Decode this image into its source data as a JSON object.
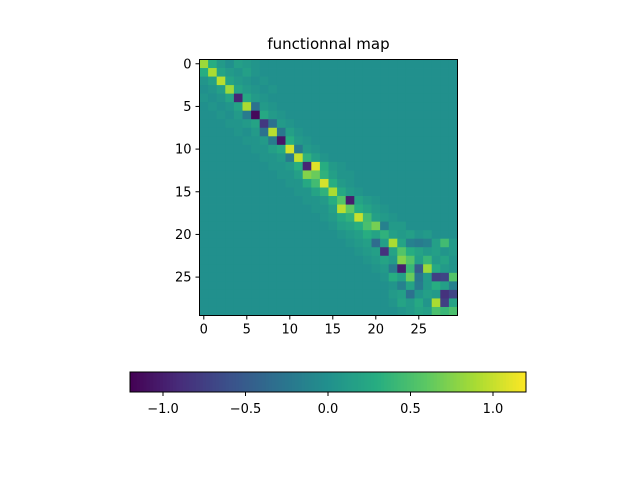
{
  "chart_data": [
    {
      "type": "heatmap",
      "title": "functionnal map",
      "rows": 30,
      "cols": 30,
      "x_ticks": [
        0,
        5,
        10,
        15,
        20,
        25
      ],
      "y_ticks": [
        0,
        5,
        10,
        15,
        20,
        25
      ],
      "x_tick_labels": [
        "0",
        "5",
        "10",
        "15",
        "20",
        "25"
      ],
      "y_tick_labels": [
        "0",
        "5",
        "10",
        "15",
        "20",
        "25"
      ],
      "colormap": "viridis",
      "vmin": -1.2,
      "vmax": 1.2,
      "background_value": 0.0,
      "values": [
        [
          0.85,
          0.3,
          0.1,
          0.0,
          0.15,
          0.1,
          0.05,
          0.0,
          0.0,
          0.0,
          0.0,
          0.0,
          0.0,
          0.0,
          0.0,
          0.0,
          0.0,
          0.0,
          0.0,
          0.0,
          0.0,
          0.0,
          0.0,
          0.0,
          0.0,
          0.0,
          0.0,
          0.0,
          0.0,
          0.0
        ],
        [
          0.3,
          0.9,
          0.2,
          0.1,
          0.05,
          0.15,
          0.05,
          0.0,
          0.0,
          0.0,
          0.0,
          0.0,
          0.0,
          0.0,
          0.0,
          0.0,
          0.0,
          0.0,
          0.0,
          0.0,
          0.0,
          0.0,
          0.0,
          0.0,
          0.0,
          0.0,
          0.0,
          0.0,
          0.0,
          0.0
        ],
        [
          0.05,
          0.15,
          0.95,
          0.2,
          0.1,
          0.05,
          0.0,
          0.05,
          0.0,
          0.0,
          0.0,
          0.0,
          0.0,
          0.0,
          0.0,
          0.0,
          0.0,
          0.0,
          0.0,
          0.0,
          0.0,
          0.0,
          0.0,
          0.0,
          0.0,
          0.0,
          0.0,
          0.0,
          0.0,
          0.0
        ],
        [
          0.0,
          0.05,
          0.15,
          0.85,
          0.2,
          0.1,
          0.05,
          0.0,
          0.05,
          0.0,
          0.0,
          0.0,
          0.0,
          0.0,
          0.0,
          0.0,
          0.0,
          0.0,
          0.0,
          0.0,
          0.0,
          0.0,
          0.0,
          0.0,
          0.0,
          0.0,
          0.0,
          0.0,
          0.0,
          0.0
        ],
        [
          0.05,
          0.0,
          0.05,
          0.2,
          -0.95,
          0.25,
          0.1,
          0.05,
          0.0,
          0.0,
          0.0,
          0.0,
          0.0,
          0.0,
          0.0,
          0.0,
          0.0,
          0.0,
          0.0,
          0.0,
          0.0,
          0.0,
          0.0,
          0.0,
          0.0,
          0.0,
          0.0,
          0.0,
          0.0,
          0.0
        ],
        [
          0.0,
          0.05,
          0.0,
          0.05,
          0.2,
          0.9,
          -0.3,
          0.1,
          0.05,
          0.0,
          0.0,
          0.0,
          0.0,
          0.0,
          0.0,
          0.0,
          0.0,
          0.0,
          0.0,
          0.0,
          0.0,
          0.0,
          0.0,
          0.0,
          0.0,
          0.0,
          0.0,
          0.0,
          0.0,
          0.0
        ],
        [
          0.0,
          0.0,
          0.05,
          0.0,
          0.1,
          -0.2,
          -1.15,
          0.25,
          0.1,
          0.05,
          0.0,
          0.0,
          0.0,
          0.0,
          0.0,
          0.0,
          0.0,
          0.0,
          0.0,
          0.0,
          0.0,
          0.0,
          0.0,
          0.0,
          0.0,
          0.0,
          0.0,
          0.0,
          0.0,
          0.0
        ],
        [
          0.0,
          0.0,
          0.0,
          0.05,
          0.05,
          0.1,
          0.2,
          -0.8,
          -0.3,
          0.1,
          0.05,
          0.0,
          0.0,
          0.0,
          0.0,
          0.0,
          0.0,
          0.0,
          0.0,
          0.0,
          0.0,
          0.0,
          0.0,
          0.0,
          0.0,
          0.0,
          0.0,
          0.0,
          0.0,
          0.0
        ],
        [
          0.0,
          0.0,
          0.0,
          0.0,
          0.05,
          0.0,
          0.1,
          -0.3,
          0.95,
          -0.25,
          0.15,
          0.05,
          0.0,
          0.0,
          0.0,
          0.0,
          0.0,
          0.0,
          0.0,
          0.0,
          0.0,
          0.0,
          0.0,
          0.0,
          0.0,
          0.0,
          0.0,
          0.0,
          0.0,
          0.0
        ],
        [
          0.0,
          0.0,
          0.0,
          0.0,
          0.0,
          0.05,
          0.05,
          0.1,
          -0.2,
          -1.05,
          0.3,
          0.1,
          0.05,
          0.0,
          0.0,
          0.0,
          0.0,
          0.0,
          0.0,
          0.0,
          0.0,
          0.0,
          0.0,
          0.0,
          0.0,
          0.0,
          0.0,
          0.0,
          0.0,
          0.0
        ],
        [
          0.0,
          0.0,
          0.0,
          0.0,
          0.0,
          0.0,
          0.05,
          0.05,
          0.15,
          0.25,
          1.05,
          -0.2,
          0.1,
          0.05,
          0.0,
          0.0,
          0.0,
          0.0,
          0.0,
          0.0,
          0.0,
          0.0,
          0.0,
          0.0,
          0.0,
          0.0,
          0.0,
          0.0,
          0.0,
          0.0
        ],
        [
          0.0,
          0.0,
          0.0,
          0.0,
          0.0,
          0.0,
          0.0,
          0.05,
          0.05,
          0.1,
          -0.2,
          1.0,
          0.35,
          0.15,
          0.05,
          0.0,
          0.0,
          0.0,
          0.0,
          0.0,
          0.0,
          0.0,
          0.0,
          0.0,
          0.0,
          0.0,
          0.0,
          0.0,
          0.0,
          0.0
        ],
        [
          0.0,
          0.0,
          0.0,
          0.0,
          0.0,
          0.0,
          0.0,
          0.0,
          0.05,
          0.05,
          0.1,
          0.3,
          -0.95,
          1.1,
          0.3,
          0.1,
          0.05,
          0.0,
          0.0,
          0.0,
          0.0,
          0.0,
          0.0,
          0.0,
          0.0,
          0.0,
          0.0,
          0.0,
          0.0,
          0.0
        ],
        [
          0.0,
          0.0,
          0.0,
          0.0,
          0.0,
          0.0,
          0.0,
          0.0,
          0.0,
          0.05,
          0.05,
          0.15,
          0.75,
          0.65,
          0.35,
          0.15,
          0.05,
          0.05,
          0.0,
          0.0,
          0.0,
          0.0,
          0.0,
          0.0,
          0.0,
          0.0,
          0.0,
          0.0,
          0.0,
          0.0
        ],
        [
          0.0,
          0.0,
          0.0,
          0.0,
          0.0,
          0.0,
          0.0,
          0.0,
          0.0,
          0.0,
          0.05,
          0.05,
          0.25,
          0.45,
          1.05,
          0.3,
          0.1,
          0.05,
          0.0,
          0.0,
          0.0,
          0.0,
          0.0,
          0.0,
          0.0,
          0.0,
          0.0,
          0.0,
          0.0,
          0.0
        ],
        [
          0.0,
          0.0,
          0.0,
          0.0,
          0.0,
          0.0,
          0.0,
          0.0,
          0.0,
          0.0,
          0.0,
          0.05,
          0.05,
          0.2,
          0.35,
          0.9,
          0.25,
          0.1,
          0.05,
          0.0,
          0.0,
          0.0,
          0.0,
          0.0,
          0.0,
          0.0,
          0.0,
          0.0,
          0.0,
          0.0
        ],
        [
          0.0,
          0.0,
          0.0,
          0.0,
          0.0,
          0.0,
          0.0,
          0.0,
          0.0,
          0.0,
          0.0,
          0.0,
          0.05,
          0.05,
          0.1,
          0.3,
          0.55,
          -1.0,
          0.2,
          0.1,
          0.05,
          0.0,
          0.0,
          0.0,
          0.0,
          0.0,
          0.0,
          0.0,
          0.0,
          0.0
        ],
        [
          0.0,
          0.0,
          0.0,
          0.0,
          0.0,
          0.0,
          0.0,
          0.0,
          0.0,
          0.0,
          0.0,
          0.0,
          0.0,
          0.05,
          0.05,
          0.15,
          0.95,
          0.6,
          0.3,
          0.2,
          0.1,
          0.05,
          0.0,
          0.0,
          0.0,
          0.0,
          0.0,
          0.0,
          0.0,
          0.0
        ],
        [
          0.0,
          0.0,
          0.0,
          0.0,
          0.0,
          0.0,
          0.0,
          0.0,
          0.0,
          0.0,
          0.0,
          0.0,
          0.0,
          0.0,
          0.05,
          0.1,
          0.25,
          0.35,
          1.0,
          0.45,
          0.15,
          0.1,
          0.05,
          0.0,
          0.0,
          0.0,
          0.0,
          0.0,
          0.0,
          0.0
        ],
        [
          0.0,
          0.0,
          0.0,
          0.0,
          0.0,
          0.0,
          0.0,
          0.0,
          0.0,
          0.0,
          0.0,
          0.0,
          0.0,
          0.0,
          0.0,
          0.05,
          0.15,
          0.2,
          0.3,
          0.5,
          0.7,
          -0.15,
          0.1,
          0.1,
          0.0,
          0.0,
          0.0,
          0.0,
          0.0,
          0.0
        ],
        [
          0.0,
          0.0,
          0.0,
          0.0,
          0.0,
          0.0,
          0.0,
          0.0,
          0.0,
          0.0,
          0.0,
          0.0,
          0.0,
          0.0,
          0.0,
          0.0,
          0.05,
          0.1,
          0.15,
          0.3,
          0.2,
          0.35,
          0.15,
          0.1,
          0.15,
          0.05,
          0.1,
          0.0,
          0.0,
          0.0
        ],
        [
          0.0,
          0.0,
          0.0,
          0.0,
          0.0,
          0.0,
          0.0,
          0.0,
          0.0,
          0.0,
          0.0,
          0.0,
          0.0,
          0.0,
          0.0,
          0.0,
          0.0,
          0.05,
          0.1,
          0.15,
          -0.35,
          0.15,
          0.9,
          0.2,
          -0.15,
          -0.2,
          -0.15,
          0.15,
          0.45,
          0.1
        ],
        [
          0.0,
          0.0,
          0.0,
          0.0,
          0.0,
          0.0,
          0.0,
          0.0,
          0.0,
          0.0,
          0.0,
          0.0,
          0.0,
          0.0,
          0.0,
          0.0,
          0.0,
          0.0,
          0.05,
          0.1,
          0.15,
          -0.85,
          0.2,
          0.55,
          0.3,
          0.2,
          0.1,
          0.15,
          0.05,
          0.1
        ],
        [
          0.0,
          0.0,
          0.0,
          0.0,
          0.0,
          0.0,
          0.0,
          0.0,
          0.0,
          0.0,
          0.0,
          0.0,
          0.0,
          0.0,
          0.0,
          0.0,
          0.0,
          0.0,
          0.0,
          0.05,
          0.1,
          0.2,
          0.1,
          0.75,
          0.55,
          0.15,
          0.4,
          0.1,
          0.2,
          0.05
        ],
        [
          0.0,
          0.0,
          0.0,
          0.0,
          0.0,
          0.0,
          0.0,
          0.0,
          0.0,
          0.0,
          0.0,
          0.0,
          0.0,
          0.0,
          0.0,
          0.0,
          0.0,
          0.0,
          0.0,
          0.0,
          0.05,
          0.1,
          -0.2,
          -1.0,
          0.4,
          -0.5,
          0.85,
          0.25,
          0.1,
          0.05
        ],
        [
          0.0,
          0.0,
          0.0,
          0.0,
          0.0,
          0.0,
          0.0,
          0.0,
          0.0,
          0.0,
          0.0,
          0.0,
          0.0,
          0.0,
          0.0,
          0.0,
          0.0,
          0.0,
          0.0,
          0.0,
          0.0,
          0.05,
          0.3,
          0.15,
          0.65,
          -0.25,
          0.1,
          -0.75,
          -0.7,
          0.55
        ],
        [
          0.0,
          0.0,
          0.0,
          0.0,
          0.0,
          0.0,
          0.0,
          0.0,
          0.0,
          0.0,
          0.0,
          0.0,
          0.0,
          0.0,
          0.0,
          0.0,
          0.0,
          0.0,
          0.0,
          0.0,
          0.0,
          0.0,
          0.05,
          -0.15,
          0.2,
          -0.2,
          0.1,
          0.3,
          0.15,
          -0.15
        ],
        [
          0.0,
          0.0,
          0.0,
          0.0,
          0.0,
          0.0,
          0.0,
          0.0,
          0.0,
          0.0,
          0.0,
          0.0,
          0.0,
          0.0,
          0.0,
          0.0,
          0.0,
          0.0,
          0.0,
          0.0,
          0.0,
          0.0,
          0.1,
          0.15,
          -0.3,
          0.05,
          0.15,
          0.1,
          -0.85,
          -0.7
        ],
        [
          0.0,
          0.0,
          0.0,
          0.0,
          0.0,
          0.0,
          0.0,
          0.0,
          0.0,
          0.0,
          0.0,
          0.0,
          0.0,
          0.0,
          0.0,
          0.0,
          0.0,
          0.0,
          0.0,
          0.0,
          0.0,
          0.0,
          0.05,
          0.2,
          0.1,
          0.25,
          0.05,
          0.9,
          -0.75,
          0.2
        ],
        [
          0.0,
          0.0,
          0.0,
          0.0,
          0.0,
          0.0,
          0.0,
          0.0,
          0.0,
          0.0,
          0.0,
          0.0,
          0.0,
          0.0,
          0.0,
          0.0,
          0.0,
          0.0,
          0.0,
          0.0,
          0.0,
          0.0,
          0.0,
          0.05,
          0.1,
          0.2,
          0.15,
          0.5,
          0.4,
          0.5
        ]
      ]
    },
    {
      "type": "colorbar",
      "orientation": "horizontal",
      "colormap": "viridis",
      "range": [
        -1.2,
        1.2
      ],
      "ticks": [
        -1.0,
        -0.5,
        0.0,
        0.5,
        1.0
      ],
      "tick_labels": [
        "−1.0",
        "−0.5",
        "0.0",
        "0.5",
        "1.0"
      ]
    }
  ]
}
